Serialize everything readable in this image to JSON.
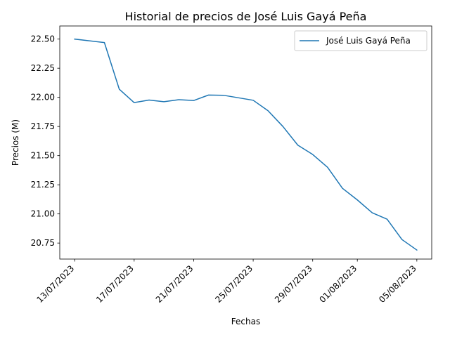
{
  "chart_data": {
    "type": "line",
    "title": "Historial de precios de José Luis Gayá Peña",
    "xlabel": "Fechas",
    "ylabel": "Precios (M)",
    "x": [
      "13/07/2023",
      "15/07/2023",
      "16/07/2023",
      "17/07/2023",
      "18/07/2023",
      "19/07/2023",
      "20/07/2023",
      "21/07/2023",
      "22/07/2023",
      "23/07/2023",
      "25/07/2023",
      "26/07/2023",
      "27/07/2023",
      "28/07/2023",
      "29/07/2023",
      "30/07/2023",
      "31/07/2023",
      "01/08/2023",
      "02/08/2023",
      "03/08/2023",
      "04/08/2023",
      "05/08/2023"
    ],
    "series": [
      {
        "name": "José Luis Gayá Peña",
        "color": "#1f77b4",
        "values": [
          22.5,
          22.47,
          22.07,
          21.955,
          21.977,
          21.963,
          21.98,
          21.973,
          22.02,
          22.018,
          21.975,
          21.885,
          21.75,
          21.59,
          21.51,
          21.4,
          21.22,
          21.12,
          21.01,
          20.955,
          20.78,
          20.69
        ]
      }
    ],
    "xticks": [
      "13/07/2023",
      "17/07/2023",
      "21/07/2023",
      "25/07/2023",
      "29/07/2023",
      "01/08/2023",
      "05/08/2023"
    ],
    "yticks": [
      "20.75",
      "21.00",
      "21.25",
      "21.50",
      "21.75",
      "22.00",
      "22.25",
      "22.50"
    ],
    "ylim": [
      20.6125,
      22.6125
    ],
    "xlim": [
      "12/07/2023",
      "06/08/2023"
    ],
    "legend": "top-right",
    "grid": false
  }
}
